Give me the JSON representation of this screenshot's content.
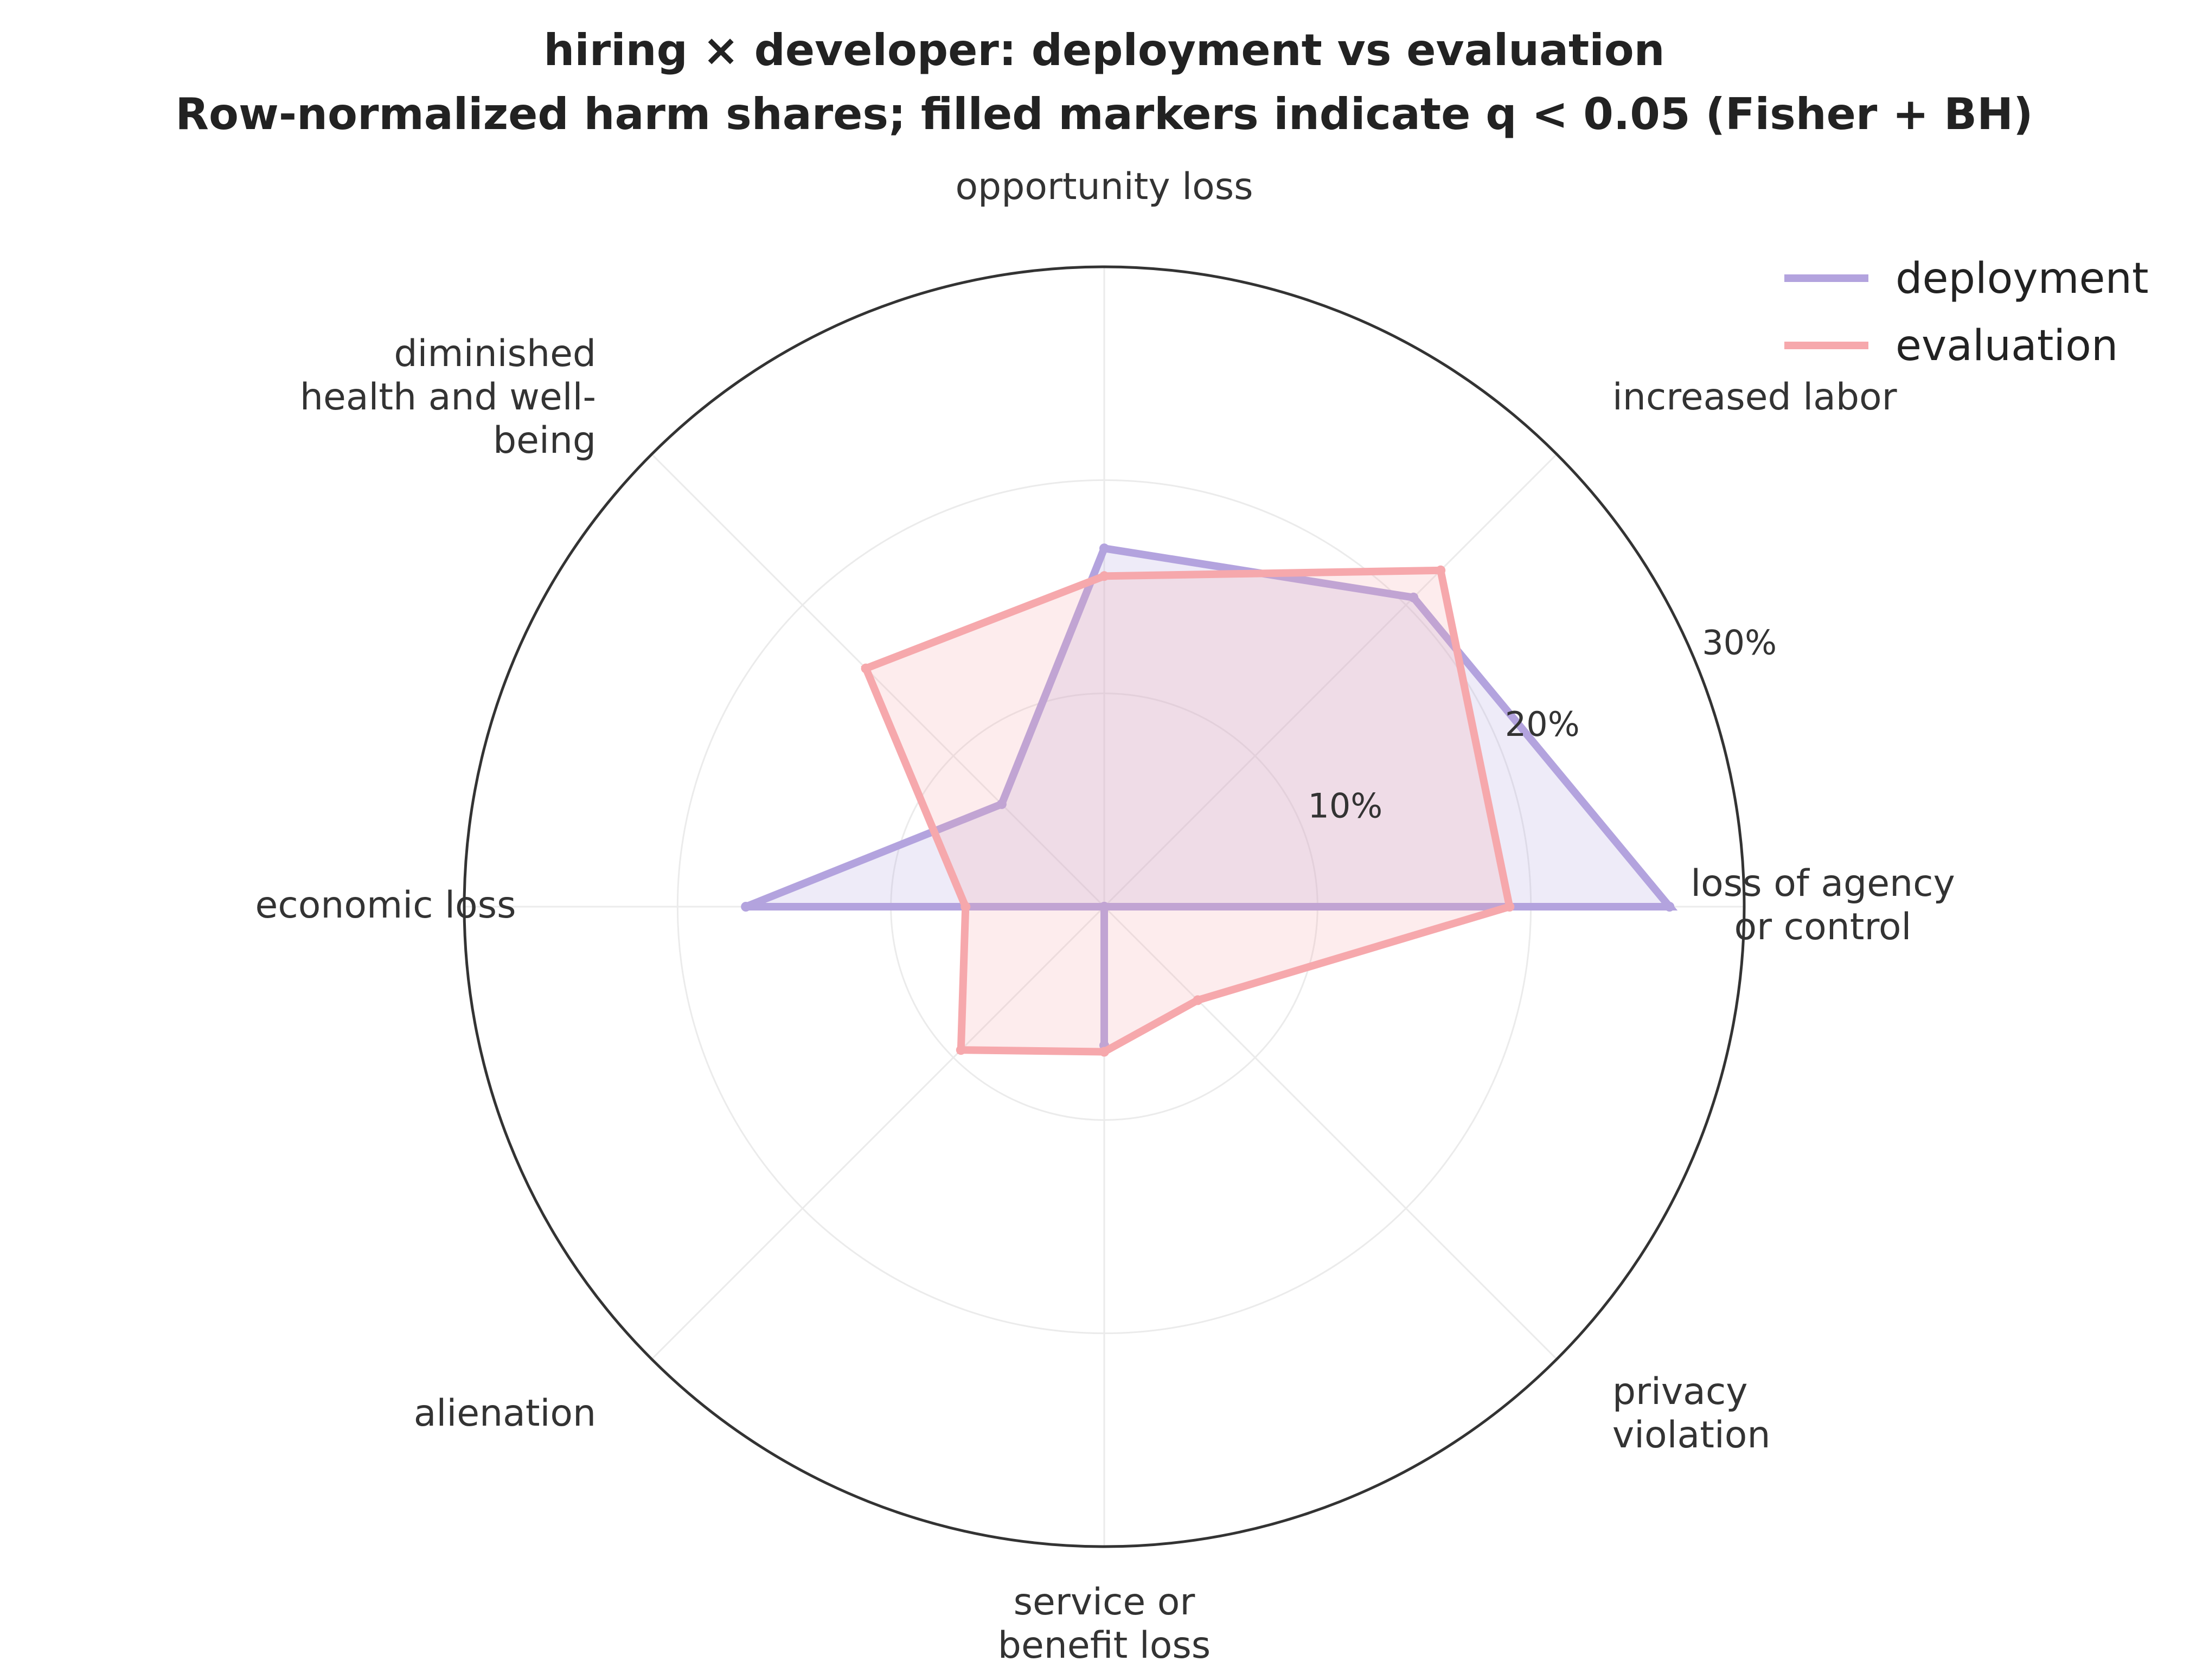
{
  "chart_data": {
    "type": "radar",
    "title": "hiring × developer: deployment vs evaluation",
    "subtitle": "Row-normalized harm shares; filled markers indicate q < 0.05 (Fisher + BH)",
    "categories": [
      "loss of agency or control",
      "increased labor",
      "opportunity loss",
      "diminished health and well-being",
      "economic loss",
      "alienation",
      "service or benefit loss",
      "privacy violation"
    ],
    "category_label_lines": [
      [
        "loss of agency",
        "or control"
      ],
      [
        "increased labor"
      ],
      [
        "opportunity loss"
      ],
      [
        "diminished",
        "health and well-",
        "being"
      ],
      [
        "economic loss"
      ],
      [
        "alienation"
      ],
      [
        "service or",
        "benefit loss"
      ],
      [
        "privacy",
        "violation"
      ]
    ],
    "series": [
      {
        "name": "deployment",
        "color": "#b3a3de",
        "values": [
          26.5,
          20.5,
          16.8,
          6.8,
          16.8,
          0.0,
          6.5,
          0.0
        ]
      },
      {
        "name": "evaluation",
        "color": "#f6a8ac",
        "values": [
          19.0,
          22.3,
          15.5,
          15.8,
          6.5,
          9.5,
          6.8,
          6.2
        ]
      }
    ],
    "r_ticks": [
      10,
      20,
      30
    ],
    "r_tick_labels": [
      "10%",
      "20%",
      "30%"
    ],
    "rlim": [
      0,
      30
    ],
    "grid": true,
    "legend_position": "top-right"
  }
}
